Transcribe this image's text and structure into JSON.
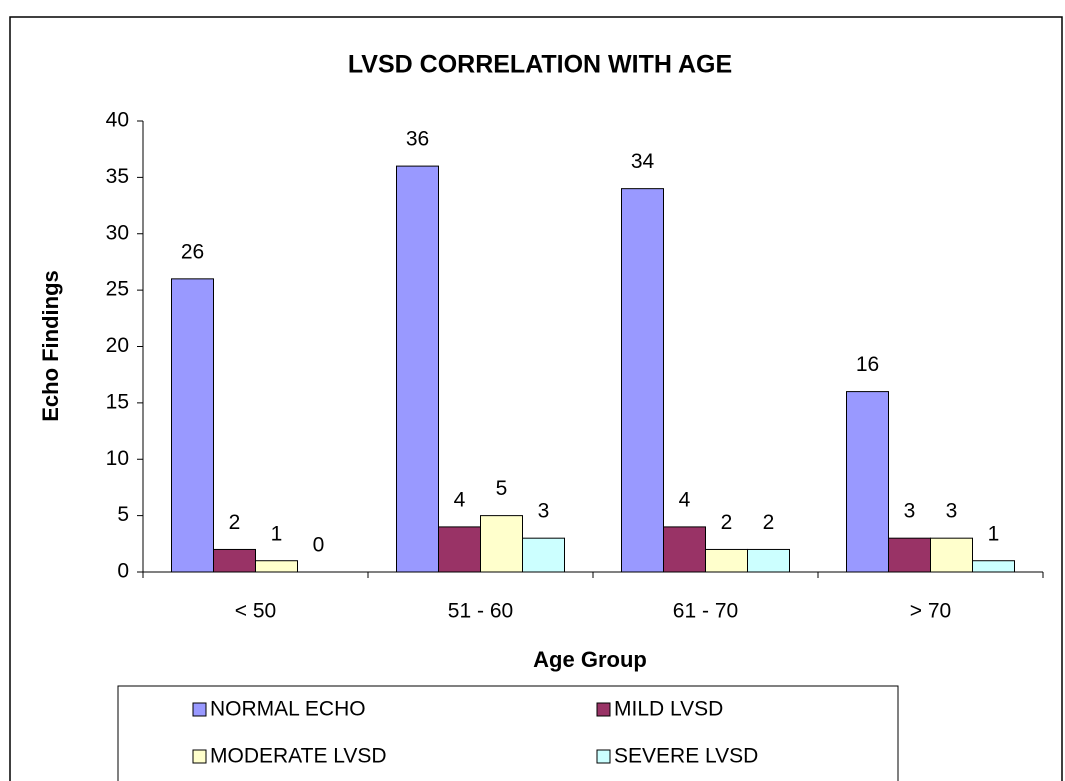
{
  "chart_data": {
    "type": "bar",
    "title": "LVSD CORRELATION WITH AGE",
    "x_label": "Age Group",
    "y_label": "Echo Findings",
    "categories": [
      "< 50",
      "51 - 60",
      "61 - 70",
      "> 70"
    ],
    "series": [
      {
        "name": "NORMAL ECHO",
        "color": "#9999ff",
        "values": [
          26,
          36,
          34,
          16
        ]
      },
      {
        "name": "MILD LVSD",
        "color": "#993366",
        "values": [
          2,
          4,
          4,
          3
        ]
      },
      {
        "name": "MODERATE LVSD",
        "color": "#ffffcc",
        "values": [
          1,
          5,
          2,
          3
        ]
      },
      {
        "name": "SEVERE LVSD",
        "color": "#ccffff",
        "values": [
          0,
          3,
          2,
          1
        ]
      }
    ],
    "ylim": [
      0,
      40
    ],
    "yticks": [
      0,
      5,
      10,
      15,
      20,
      25,
      30,
      35,
      40
    ],
    "grid": false,
    "legend": "bottom"
  }
}
